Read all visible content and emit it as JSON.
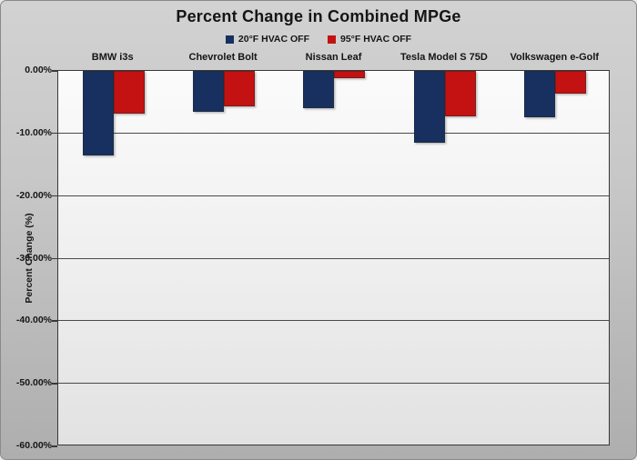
{
  "chart_data": {
    "type": "bar",
    "title": "Percent Change in Combined MPGe",
    "ylabel": "Percent Change (%)",
    "xlabel": "",
    "categories": [
      "BMW i3s",
      "Chevrolet Bolt",
      "Nissan Leaf",
      "Tesla Model S 75D",
      "Volkswagen e-Golf"
    ],
    "series": [
      {
        "name": "20°F HVAC OFF",
        "color": "#17305f",
        "values": [
          -13.5,
          -6.5,
          -6.0,
          -11.5,
          -7.4
        ]
      },
      {
        "name": "95°F HVAC OFF",
        "color": "#c41111",
        "values": [
          -6.8,
          -5.7,
          -1.2,
          -7.2,
          -3.7
        ]
      }
    ],
    "ylim": [
      -60,
      0
    ],
    "ytick_step": 10,
    "ytick_labels": [
      "0.00%",
      "-10.00%",
      "-20.00%",
      "-30.00%",
      "-40.00%",
      "-50.00%",
      "-60.00%"
    ],
    "grid": true,
    "legend_position": "top",
    "colors": {
      "canvas_background_top": "#d2d2d2",
      "canvas_background_bottom": "#aeaeae",
      "plot_background_top": "#fbfbfb",
      "plot_background_bottom": "#e2e2e2",
      "gridline": "#4a4a4a",
      "text": "#151515"
    }
  }
}
